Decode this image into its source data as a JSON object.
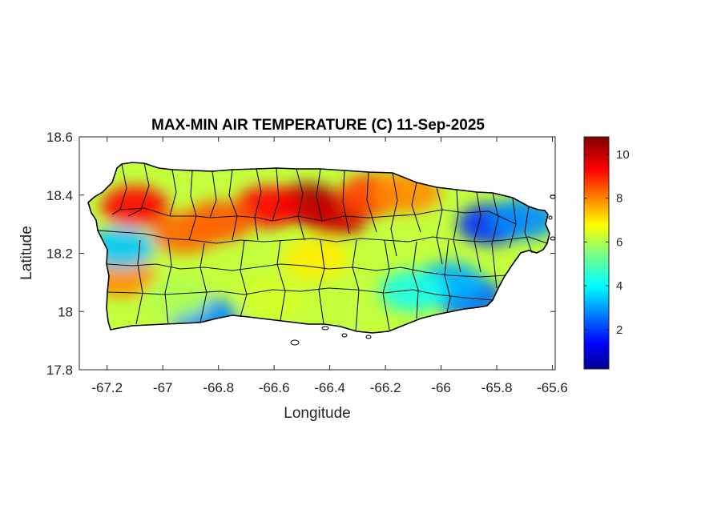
{
  "chart_data": {
    "type": "heatmap",
    "title": "MAX-MIN AIR TEMPERATURE (C) 11-Sep-2025",
    "xlabel": "Longitude",
    "ylabel": "Latitude",
    "xlim": [
      -67.3,
      -65.59
    ],
    "ylim": [
      17.8,
      18.6
    ],
    "x_ticks": [
      "-67.2",
      "-67",
      "-66.8",
      "-66.6",
      "-66.4",
      "-66.2",
      "-66",
      "-65.8",
      "-65.6"
    ],
    "x_tick_values": [
      -67.2,
      -67.0,
      -66.8,
      -66.6,
      -66.4,
      -66.2,
      -66.0,
      -65.8,
      -65.6
    ],
    "y_ticks": [
      "18.6",
      "18.4",
      "18.2",
      "18",
      "17.8"
    ],
    "y_tick_values": [
      18.6,
      18.4,
      18.2,
      18.0,
      17.8
    ],
    "colorbar": {
      "colormap": "jet",
      "range": [
        0.2,
        10.8
      ],
      "ticks": [
        "10",
        "8",
        "6",
        "4",
        "2"
      ],
      "tick_values": [
        10,
        8,
        6,
        4,
        2
      ]
    },
    "region": "Puerto Rico",
    "grid": false,
    "hotspots": [
      {
        "lon": -66.48,
        "lat": 18.37,
        "value": 10.5
      },
      {
        "lon": -66.38,
        "lat": 18.33,
        "value": 10.0
      },
      {
        "lon": -66.62,
        "lat": 18.36,
        "value": 9.4
      },
      {
        "lon": -66.8,
        "lat": 18.31,
        "value": 8.6
      },
      {
        "lon": -66.25,
        "lat": 18.4,
        "value": 8.8
      },
      {
        "lon": -66.12,
        "lat": 18.41,
        "value": 8.0
      },
      {
        "lon": -67.1,
        "lat": 18.36,
        "value": 9.4
      },
      {
        "lon": -66.92,
        "lat": 18.27,
        "value": 8.4
      },
      {
        "lon": -67.15,
        "lat": 18.12,
        "value": 8.0
      },
      {
        "lon": -65.82,
        "lat": 18.3,
        "value": 2.0
      },
      {
        "lon": -65.7,
        "lat": 18.32,
        "value": 3.0
      },
      {
        "lon": -65.9,
        "lat": 18.05,
        "value": 2.6
      },
      {
        "lon": -65.97,
        "lat": 18.1,
        "value": 3.4
      },
      {
        "lon": -67.15,
        "lat": 18.22,
        "value": 3.6
      },
      {
        "lon": -66.85,
        "lat": 17.98,
        "value": 3.0
      },
      {
        "lon": -66.1,
        "lat": 18.07,
        "value": 4.4
      },
      {
        "lon": -66.45,
        "lat": 18.18,
        "value": 7.0
      },
      {
        "lon": -66.6,
        "lat": 18.05,
        "value": 6.4
      },
      {
        "lon": -66.95,
        "lat": 18.05,
        "value": 6.0
      }
    ],
    "background_value": 6.2
  }
}
